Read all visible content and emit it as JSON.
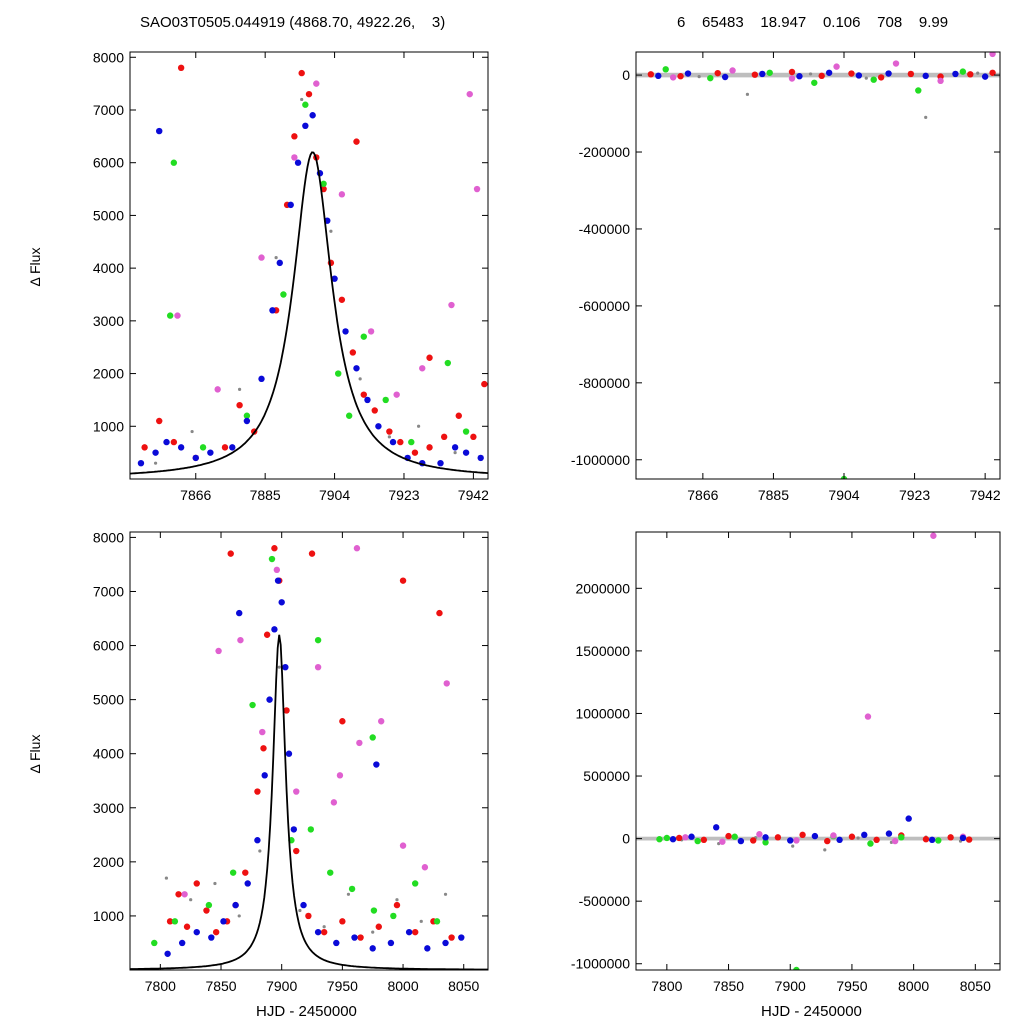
{
  "header": {
    "left": "SAO03T0505.044919 (4868.70, 4922.26,    3)",
    "right": "6    65483    18.947    0.106    708    9.99"
  },
  "colors": {
    "red": "#ee1111",
    "blue": "#0a0ad8",
    "green": "#22dd22",
    "violet": "#e060d0",
    "gray": "#888888",
    "fit": "#000000"
  },
  "chart_data": [
    {
      "type": "scatter",
      "panel": "top-left",
      "title": "",
      "xlabel": "",
      "ylabel": "Δ Flux",
      "xlim": [
        7848,
        7946
      ],
      "ylim": [
        0,
        8100
      ],
      "x_ticks": [
        7866,
        7885,
        7904,
        7923,
        7942
      ],
      "y_ticks": [
        1000,
        2000,
        3000,
        4000,
        5000,
        6000,
        7000,
        8000
      ],
      "fit": {
        "model": "peak",
        "t0": 7898,
        "amplitude": 6200,
        "width": 6.5
      },
      "series": [
        {
          "color": "red",
          "x": [
            7852,
            7856,
            7860,
            7866,
            7874,
            7882,
            7888,
            7891,
            7893,
            7895,
            7897,
            7899,
            7901,
            7903,
            7906,
            7909,
            7912,
            7915,
            7919,
            7922,
            7926,
            7930,
            7934,
            7938,
            7942,
            7945,
            7862,
            7878,
            7910,
            7930
          ],
          "y": [
            600,
            1100,
            700,
            400,
            600,
            900,
            3200,
            5200,
            6500,
            7700,
            7300,
            6100,
            5500,
            4100,
            3400,
            2400,
            1600,
            1300,
            900,
            700,
            500,
            600,
            800,
            1200,
            800,
            1800,
            7800,
            1400,
            6400,
            2300
          ]
        },
        {
          "color": "blue",
          "x": [
            7851,
            7855,
            7858,
            7862,
            7866,
            7870,
            7876,
            7880,
            7884,
            7887,
            7889,
            7892,
            7894,
            7896,
            7898,
            7900,
            7902,
            7904,
            7907,
            7910,
            7913,
            7916,
            7920,
            7924,
            7928,
            7933,
            7937,
            7940,
            7944,
            7856
          ],
          "y": [
            300,
            500,
            700,
            600,
            400,
            500,
            600,
            1100,
            1900,
            3200,
            4100,
            5200,
            6000,
            6700,
            6900,
            5800,
            4900,
            3800,
            2800,
            2100,
            1500,
            1000,
            700,
            400,
            300,
            300,
            600,
            500,
            400,
            6600
          ]
        },
        {
          "color": "green",
          "x": [
            7859,
            7868,
            7880,
            7890,
            7896,
            7901,
            7905,
            7908,
            7912,
            7918,
            7925,
            7935,
            7940,
            7860
          ],
          "y": [
            3100,
            600,
            1200,
            3500,
            7100,
            5600,
            2000,
            1200,
            2700,
            1500,
            700,
            2200,
            900,
            6000
          ]
        },
        {
          "color": "violet",
          "x": [
            7861,
            7872,
            7884,
            7893,
            7899,
            7906,
            7914,
            7921,
            7928,
            7936,
            7941,
            7943
          ],
          "y": [
            3100,
            1700,
            4200,
            6100,
            7500,
            5400,
            2800,
            1600,
            2100,
            3300,
            7300,
            5500
          ]
        },
        {
          "color": "gray",
          "x": [
            7855,
            7865,
            7878,
            7888,
            7895,
            7903,
            7911,
            7919,
            7927,
            7937
          ],
          "y": [
            300,
            900,
            1700,
            4200,
            7200,
            4700,
            1900,
            800,
            1000,
            500
          ]
        }
      ]
    },
    {
      "type": "scatter",
      "panel": "top-right",
      "title": "",
      "xlabel": "",
      "ylabel": "",
      "xlim": [
        7848,
        7946
      ],
      "ylim": [
        -1050000,
        60000
      ],
      "x_ticks": [
        7866,
        7885,
        7904,
        7923,
        7942
      ],
      "y_ticks": [
        0,
        -200000,
        -400000,
        -600000,
        -800000,
        -1000000
      ],
      "band": {
        "y": 0,
        "half_width": 6000
      },
      "series": [
        {
          "color": "red",
          "x": [
            7852,
            7860,
            7870,
            7880,
            7890,
            7898,
            7906,
            7914,
            7922,
            7930,
            7938,
            7944
          ],
          "y": [
            2000,
            -3000,
            5000,
            1000,
            8000,
            -2000,
            4000,
            -6000,
            3000,
            -4000,
            2000,
            6000
          ]
        },
        {
          "color": "blue",
          "x": [
            7854,
            7862,
            7872,
            7882,
            7892,
            7900,
            7908,
            7916,
            7926,
            7934,
            7942
          ],
          "y": [
            -2000,
            4000,
            -5000,
            3000,
            -3000,
            6000,
            -1000,
            4000,
            -2000,
            3000,
            -4000
          ]
        },
        {
          "color": "green",
          "x": [
            7856,
            7868,
            7884,
            7896,
            7904,
            7912,
            7924,
            7936
          ],
          "y": [
            15000,
            -8000,
            6000,
            -20000,
            -1050000,
            -12000,
            -40000,
            9000
          ]
        },
        {
          "color": "violet",
          "x": [
            7858,
            7874,
            7890,
            7902,
            7918,
            7930,
            7944
          ],
          "y": [
            -6000,
            12000,
            -9000,
            22000,
            30000,
            -15000,
            55000
          ]
        },
        {
          "color": "gray",
          "x": [
            7865,
            7878,
            7895,
            7910,
            7926,
            7940
          ],
          "y": [
            -4000,
            -50000,
            3000,
            -8000,
            -110000,
            5000
          ]
        }
      ]
    },
    {
      "type": "scatter",
      "panel": "bottom-left",
      "title": "",
      "xlabel": "HJD - 2450000",
      "ylabel": "Δ Flux",
      "xlim": [
        7775,
        8070
      ],
      "ylim": [
        0,
        8100
      ],
      "x_ticks": [
        7800,
        7850,
        7900,
        7950,
        8000,
        8050
      ],
      "y_ticks": [
        1000,
        2000,
        3000,
        4000,
        5000,
        6000,
        7000,
        8000
      ],
      "fit": {
        "model": "peak",
        "t0": 7898,
        "amplitude": 6200,
        "width": 6.5
      },
      "series": [
        {
          "color": "red",
          "x": [
            7808,
            7815,
            7822,
            7830,
            7838,
            7846,
            7855,
            7862,
            7870,
            7880,
            7888,
            7894,
            7898,
            7904,
            7912,
            7922,
            7935,
            7950,
            7965,
            7980,
            7995,
            8010,
            8025,
            8040,
            7858,
            7925,
            8000,
            8030,
            7885,
            7950
          ],
          "y": [
            900,
            1400,
            800,
            1600,
            1100,
            700,
            900,
            1200,
            1800,
            3300,
            6200,
            7800,
            7200,
            4800,
            2200,
            1000,
            700,
            900,
            600,
            800,
            1200,
            700,
            900,
            600,
            7700,
            7700,
            7200,
            6600,
            4100,
            4600
          ]
        },
        {
          "color": "blue",
          "x": [
            7806,
            7818,
            7830,
            7842,
            7852,
            7862,
            7872,
            7880,
            7886,
            7890,
            7894,
            7897,
            7900,
            7903,
            7906,
            7910,
            7918,
            7930,
            7945,
            7960,
            7975,
            7990,
            8005,
            8020,
            8035,
            8048,
            7865,
            7978
          ],
          "y": [
            300,
            500,
            700,
            600,
            900,
            1200,
            1600,
            2400,
            3600,
            5000,
            6300,
            7200,
            6800,
            5600,
            4000,
            2600,
            1200,
            700,
            500,
            600,
            400,
            500,
            700,
            400,
            500,
            600,
            6600,
            3800
          ]
        },
        {
          "color": "green",
          "x": [
            7795,
            7812,
            7840,
            7860,
            7876,
            7892,
            7908,
            7924,
            7940,
            7958,
            7976,
            7992,
            8010,
            8028,
            7930,
            7975
          ],
          "y": [
            500,
            900,
            1200,
            1800,
            4900,
            7600,
            2400,
            2600,
            1800,
            1500,
            1100,
            1000,
            1600,
            900,
            6100,
            4300
          ]
        },
        {
          "color": "violet",
          "x": [
            7820,
            7848,
            7866,
            7884,
            7896,
            7912,
            7930,
            7948,
            7962,
            7982,
            8000,
            8018,
            8036,
            7964,
            7943
          ],
          "y": [
            1400,
            5900,
            6100,
            4400,
            7400,
            3300,
            5600,
            3600,
            7800,
            4600,
            2300,
            1900,
            5300,
            4200,
            3100
          ]
        },
        {
          "color": "gray",
          "x": [
            7805,
            7825,
            7845,
            7865,
            7882,
            7898,
            7915,
            7935,
            7955,
            7975,
            7995,
            8015,
            8035
          ],
          "y": [
            1700,
            1300,
            1600,
            1000,
            2200,
            5600,
            1100,
            800,
            1400,
            700,
            1300,
            900,
            1400
          ]
        }
      ]
    },
    {
      "type": "scatter",
      "panel": "bottom-right",
      "title": "",
      "xlabel": "HJD - 2450000",
      "ylabel": "",
      "xlim": [
        7775,
        8070
      ],
      "ylim": [
        -1050000,
        2450000
      ],
      "x_ticks": [
        7800,
        7850,
        7900,
        7950,
        8000,
        8050
      ],
      "y_ticks": [
        -1000000,
        -500000,
        0,
        500000,
        1000000,
        1500000,
        2000000
      ],
      "band": {
        "y": 0,
        "half_width": 15000
      },
      "series": [
        {
          "color": "red",
          "x": [
            7810,
            7830,
            7850,
            7870,
            7890,
            7910,
            7930,
            7950,
            7970,
            7990,
            8010,
            8030,
            8045
          ],
          "y": [
            5000,
            -10000,
            20000,
            -15000,
            10000,
            30000,
            -20000,
            15000,
            -10000,
            25000,
            -5000,
            10000,
            -8000
          ]
        },
        {
          "color": "blue",
          "x": [
            7805,
            7820,
            7840,
            7860,
            7880,
            7900,
            7920,
            7940,
            7960,
            7980,
            7996,
            8015,
            8040
          ],
          "y": [
            -5000,
            15000,
            90000,
            -20000,
            10000,
            -15000,
            20000,
            -10000,
            30000,
            40000,
            160000,
            -10000,
            5000
          ]
        },
        {
          "color": "green",
          "x": [
            7794,
            7800,
            7825,
            7855,
            7880,
            7905,
            7935,
            7965,
            7990,
            8020
          ],
          "y": [
            -5000,
            5000,
            -20000,
            15000,
            -30000,
            -1050000,
            20000,
            -40000,
            10000,
            -15000
          ]
        },
        {
          "color": "violet",
          "x": [
            7815,
            7845,
            7875,
            7905,
            7935,
            7963,
            7985,
            8016,
            8040
          ],
          "y": [
            10000,
            -25000,
            35000,
            -15000,
            25000,
            975000,
            -20000,
            2420000,
            15000
          ]
        },
        {
          "color": "gray",
          "x": [
            7812,
            7842,
            7872,
            7902,
            7928,
            7955,
            7982,
            8010,
            8038
          ],
          "y": [
            -10000,
            -40000,
            8000,
            -60000,
            -90000,
            5000,
            -30000,
            12000,
            -20000
          ]
        }
      ]
    }
  ]
}
